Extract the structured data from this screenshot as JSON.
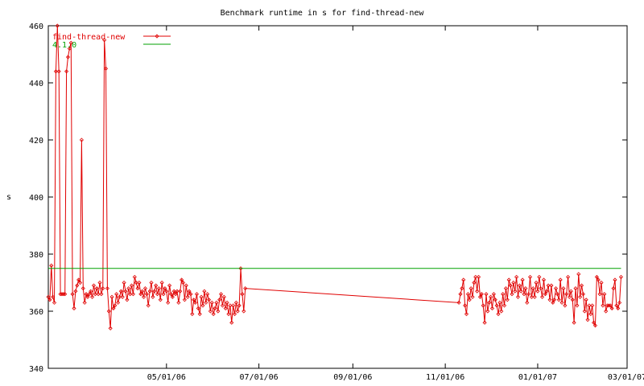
{
  "chart_data": {
    "type": "line",
    "title": "Benchmark runtime in s for find-thread-new",
    "xlabel": "",
    "ylabel": "s",
    "x_type": "date",
    "xlim": [
      "2006-02-12",
      "2007-03-01"
    ],
    "ylim": [
      340,
      460
    ],
    "yticks": [
      340,
      360,
      380,
      400,
      420,
      440,
      460
    ],
    "xticks": [
      {
        "date": "2006-05-01",
        "label": "05/01/06"
      },
      {
        "date": "2006-07-01",
        "label": "07/01/06"
      },
      {
        "date": "2006-09-01",
        "label": "09/01/06"
      },
      {
        "date": "2006-11-01",
        "label": "11/01/06"
      },
      {
        "date": "2007-01-01",
        "label": "01/01/07"
      },
      {
        "date": "2007-03-01",
        "label": "03/01/07"
      }
    ],
    "legend_position": "top-left",
    "grid": false,
    "colors": {
      "series": "#e00000",
      "baseline": "#00a000",
      "axis": "#000000"
    },
    "series": [
      {
        "name": "find-thread-new",
        "color": "#e00000",
        "marker": "diamond",
        "points": [
          [
            "2006-02-12",
            365
          ],
          [
            "2006-02-13",
            364
          ],
          [
            "2006-02-14",
            376
          ],
          [
            "2006-02-15",
            365
          ],
          [
            "2006-02-16",
            363
          ],
          [
            "2006-02-17",
            444
          ],
          [
            "2006-02-18",
            460
          ],
          [
            "2006-02-19",
            444
          ],
          [
            "2006-02-20",
            366
          ],
          [
            "2006-02-21",
            366
          ],
          [
            "2006-02-22",
            366
          ],
          [
            "2006-02-23",
            366
          ],
          [
            "2006-02-24",
            444
          ],
          [
            "2006-02-25",
            449
          ],
          [
            "2006-02-26",
            452
          ],
          [
            "2006-02-27",
            454
          ],
          [
            "2006-02-28",
            366
          ],
          [
            "2006-03-01",
            361
          ],
          [
            "2006-03-02",
            367
          ],
          [
            "2006-03-03",
            369
          ],
          [
            "2006-03-04",
            371
          ],
          [
            "2006-03-05",
            370
          ],
          [
            "2006-03-06",
            420
          ],
          [
            "2006-03-07",
            368
          ],
          [
            "2006-03-08",
            363
          ],
          [
            "2006-03-09",
            366
          ],
          [
            "2006-03-10",
            365
          ],
          [
            "2006-03-11",
            366
          ],
          [
            "2006-03-12",
            367
          ],
          [
            "2006-03-13",
            365
          ],
          [
            "2006-03-14",
            369
          ],
          [
            "2006-03-15",
            366
          ],
          [
            "2006-03-16",
            368
          ],
          [
            "2006-03-17",
            366
          ],
          [
            "2006-03-18",
            370
          ],
          [
            "2006-03-19",
            366
          ],
          [
            "2006-03-20",
            368
          ],
          [
            "2006-03-21",
            455
          ],
          [
            "2006-03-22",
            445
          ],
          [
            "2006-03-23",
            368
          ],
          [
            "2006-03-24",
            360
          ],
          [
            "2006-03-25",
            354
          ],
          [
            "2006-03-26",
            365
          ],
          [
            "2006-03-27",
            361
          ],
          [
            "2006-03-28",
            362
          ],
          [
            "2006-03-29",
            366
          ],
          [
            "2006-03-30",
            363
          ],
          [
            "2006-03-31",
            365
          ],
          [
            "2006-04-01",
            367
          ],
          [
            "2006-04-02",
            365
          ],
          [
            "2006-04-03",
            370
          ],
          [
            "2006-04-04",
            367
          ],
          [
            "2006-04-05",
            364
          ],
          [
            "2006-04-06",
            368
          ],
          [
            "2006-04-07",
            366
          ],
          [
            "2006-04-08",
            369
          ],
          [
            "2006-04-09",
            366
          ],
          [
            "2006-04-10",
            372
          ],
          [
            "2006-04-11",
            370
          ],
          [
            "2006-04-12",
            368
          ],
          [
            "2006-04-13",
            370
          ],
          [
            "2006-04-14",
            366
          ],
          [
            "2006-04-15",
            367
          ],
          [
            "2006-04-16",
            365
          ],
          [
            "2006-04-17",
            368
          ],
          [
            "2006-04-18",
            366
          ],
          [
            "2006-04-19",
            362
          ],
          [
            "2006-04-20",
            367
          ],
          [
            "2006-04-21",
            370
          ],
          [
            "2006-04-22",
            365
          ],
          [
            "2006-04-23",
            367
          ],
          [
            "2006-04-24",
            369
          ],
          [
            "2006-04-25",
            366
          ],
          [
            "2006-04-26",
            368
          ],
          [
            "2006-04-27",
            364
          ],
          [
            "2006-04-28",
            370
          ],
          [
            "2006-04-29",
            366
          ],
          [
            "2006-04-30",
            368
          ],
          [
            "2006-05-01",
            367
          ],
          [
            "2006-05-02",
            363
          ],
          [
            "2006-05-03",
            369
          ],
          [
            "2006-05-04",
            366
          ],
          [
            "2006-05-05",
            365
          ],
          [
            "2006-05-06",
            367
          ],
          [
            "2006-05-07",
            366
          ],
          [
            "2006-05-08",
            367
          ],
          [
            "2006-05-09",
            363
          ],
          [
            "2006-05-10",
            367
          ],
          [
            "2006-05-11",
            371
          ],
          [
            "2006-05-12",
            370
          ],
          [
            "2006-05-13",
            364
          ],
          [
            "2006-05-14",
            369
          ],
          [
            "2006-05-15",
            365
          ],
          [
            "2006-05-16",
            367
          ],
          [
            "2006-05-17",
            366
          ],
          [
            "2006-05-18",
            359
          ],
          [
            "2006-05-19",
            364
          ],
          [
            "2006-05-20",
            363
          ],
          [
            "2006-05-21",
            366
          ],
          [
            "2006-05-22",
            361
          ],
          [
            "2006-05-23",
            359
          ],
          [
            "2006-05-24",
            365
          ],
          [
            "2006-05-25",
            362
          ],
          [
            "2006-05-26",
            367
          ],
          [
            "2006-05-27",
            363
          ],
          [
            "2006-05-28",
            366
          ],
          [
            "2006-05-29",
            364
          ],
          [
            "2006-05-30",
            360
          ],
          [
            "2006-05-31",
            363
          ],
          [
            "2006-06-01",
            359
          ],
          [
            "2006-06-02",
            361
          ],
          [
            "2006-06-03",
            363
          ],
          [
            "2006-06-04",
            360
          ],
          [
            "2006-06-05",
            364
          ],
          [
            "2006-06-06",
            366
          ],
          [
            "2006-06-07",
            362
          ],
          [
            "2006-06-08",
            365
          ],
          [
            "2006-06-09",
            361
          ],
          [
            "2006-06-10",
            363
          ],
          [
            "2006-06-11",
            359
          ],
          [
            "2006-06-12",
            362
          ],
          [
            "2006-06-13",
            356
          ],
          [
            "2006-06-14",
            362
          ],
          [
            "2006-06-15",
            359
          ],
          [
            "2006-06-16",
            363
          ],
          [
            "2006-06-17",
            360
          ],
          [
            "2006-06-18",
            362
          ],
          [
            "2006-06-19",
            375
          ],
          [
            "2006-06-20",
            366
          ],
          [
            "2006-06-21",
            360
          ],
          [
            "2006-06-22",
            368
          ],
          [
            "2006-11-10",
            363
          ],
          [
            "2006-11-11",
            366
          ],
          [
            "2006-11-12",
            368
          ],
          [
            "2006-11-13",
            371
          ],
          [
            "2006-11-14",
            362
          ],
          [
            "2006-11-15",
            359
          ],
          [
            "2006-11-16",
            366
          ],
          [
            "2006-11-17",
            364
          ],
          [
            "2006-11-18",
            368
          ],
          [
            "2006-11-19",
            365
          ],
          [
            "2006-11-20",
            370
          ],
          [
            "2006-11-21",
            372
          ],
          [
            "2006-11-22",
            367
          ],
          [
            "2006-11-23",
            372
          ],
          [
            "2006-11-24",
            365
          ],
          [
            "2006-11-25",
            366
          ],
          [
            "2006-11-26",
            362
          ],
          [
            "2006-11-27",
            356
          ],
          [
            "2006-11-28",
            366
          ],
          [
            "2006-11-29",
            360
          ],
          [
            "2006-11-30",
            363
          ],
          [
            "2006-12-01",
            365
          ],
          [
            "2006-12-02",
            361
          ],
          [
            "2006-12-03",
            366
          ],
          [
            "2006-12-04",
            364
          ],
          [
            "2006-12-05",
            362
          ],
          [
            "2006-12-06",
            359
          ],
          [
            "2006-12-07",
            363
          ],
          [
            "2006-12-08",
            360
          ],
          [
            "2006-12-09",
            366
          ],
          [
            "2006-12-10",
            362
          ],
          [
            "2006-12-11",
            368
          ],
          [
            "2006-12-12",
            364
          ],
          [
            "2006-12-13",
            371
          ],
          [
            "2006-12-14",
            369
          ],
          [
            "2006-12-15",
            366
          ],
          [
            "2006-12-16",
            370
          ],
          [
            "2006-12-17",
            367
          ],
          [
            "2006-12-18",
            372
          ],
          [
            "2006-12-19",
            365
          ],
          [
            "2006-12-20",
            369
          ],
          [
            "2006-12-21",
            367
          ],
          [
            "2006-12-22",
            371
          ],
          [
            "2006-12-23",
            366
          ],
          [
            "2006-12-24",
            368
          ],
          [
            "2006-12-25",
            363
          ],
          [
            "2006-12-26",
            366
          ],
          [
            "2006-12-27",
            372
          ],
          [
            "2006-12-28",
            365
          ],
          [
            "2006-12-29",
            368
          ],
          [
            "2006-12-30",
            365
          ],
          [
            "2006-12-31",
            370
          ],
          [
            "2007-01-01",
            367
          ],
          [
            "2007-01-02",
            372
          ],
          [
            "2007-01-03",
            368
          ],
          [
            "2007-01-04",
            365
          ],
          [
            "2007-01-05",
            371
          ],
          [
            "2007-01-06",
            366
          ],
          [
            "2007-01-07",
            367
          ],
          [
            "2007-01-08",
            369
          ],
          [
            "2007-01-09",
            364
          ],
          [
            "2007-01-10",
            369
          ],
          [
            "2007-01-11",
            363
          ],
          [
            "2007-01-12",
            364
          ],
          [
            "2007-01-13",
            368
          ],
          [
            "2007-01-14",
            366
          ],
          [
            "2007-01-15",
            364
          ],
          [
            "2007-01-16",
            371
          ],
          [
            "2007-01-17",
            363
          ],
          [
            "2007-01-18",
            368
          ],
          [
            "2007-01-19",
            362
          ],
          [
            "2007-01-20",
            366
          ],
          [
            "2007-01-21",
            372
          ],
          [
            "2007-01-22",
            365
          ],
          [
            "2007-01-23",
            367
          ],
          [
            "2007-01-24",
            364
          ],
          [
            "2007-01-25",
            356
          ],
          [
            "2007-01-26",
            368
          ],
          [
            "2007-01-27",
            362
          ],
          [
            "2007-01-28",
            373
          ],
          [
            "2007-01-29",
            365
          ],
          [
            "2007-01-30",
            369
          ],
          [
            "2007-01-31",
            366
          ],
          [
            "2007-02-01",
            360
          ],
          [
            "2007-02-02",
            364
          ],
          [
            "2007-02-03",
            357
          ],
          [
            "2007-02-04",
            362
          ],
          [
            "2007-02-05",
            359
          ],
          [
            "2007-02-06",
            362
          ],
          [
            "2007-02-07",
            356
          ],
          [
            "2007-02-08",
            355
          ],
          [
            "2007-02-09",
            372
          ],
          [
            "2007-02-10",
            371
          ],
          [
            "2007-02-11",
            366
          ],
          [
            "2007-02-12",
            370
          ],
          [
            "2007-02-13",
            362
          ],
          [
            "2007-02-14",
            366
          ],
          [
            "2007-02-15",
            360
          ],
          [
            "2007-02-16",
            362
          ],
          [
            "2007-02-17",
            362
          ],
          [
            "2007-02-18",
            362
          ],
          [
            "2007-02-19",
            361
          ],
          [
            "2007-02-20",
            368
          ],
          [
            "2007-02-21",
            371
          ],
          [
            "2007-02-22",
            362
          ],
          [
            "2007-02-23",
            361
          ],
          [
            "2007-02-24",
            363
          ],
          [
            "2007-02-25",
            372
          ]
        ]
      },
      {
        "name": "4.1.0",
        "color": "#00a000",
        "marker": "none",
        "points": [
          [
            "2006-02-12",
            375
          ],
          [
            "2007-02-25",
            375
          ]
        ]
      }
    ]
  }
}
